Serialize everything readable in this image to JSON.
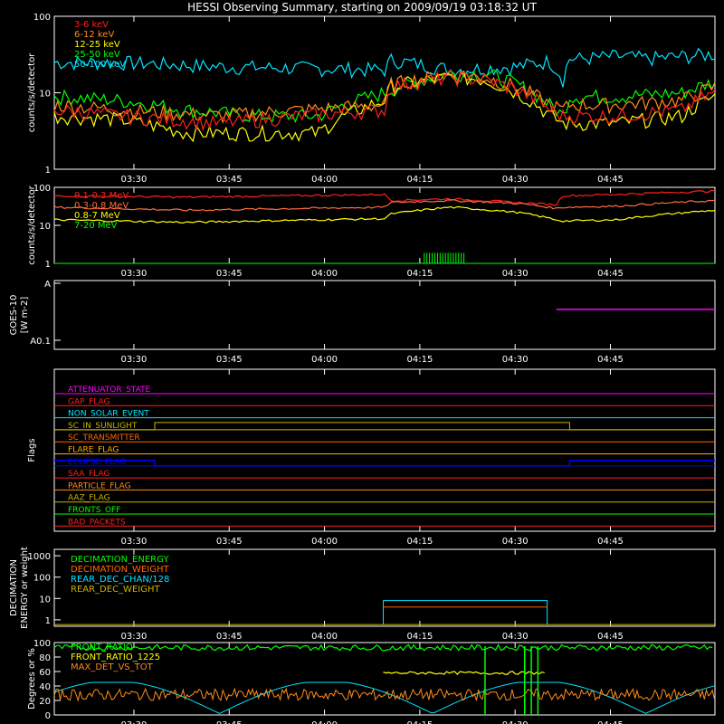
{
  "title": "HESSI Observing Summary, starting on 2009/09/19 03:18:32 UT",
  "time_ticks": [
    "03:30",
    "03:45",
    "04:00",
    "04:15",
    "04:30",
    "04:45"
  ],
  "colors": {
    "bg": "#000000",
    "axis": "#ffffff",
    "red": "#ff2020",
    "orange": "#ff8c1a",
    "yellow": "#ffff00",
    "green": "#00ff00",
    "cyan": "#00e5ff",
    "magenta": "#ff00ff",
    "blue": "#0000ff",
    "salmon": "#ff6a40",
    "olive": "#c8b400",
    "peach": "#ffb000",
    "darkorange": "#ff6600"
  },
  "chart_data": [
    {
      "id": "lowE",
      "type": "line",
      "ylabel": "counts/s/detector",
      "ylog": true,
      "ylim": [
        1,
        100
      ],
      "yticks": [
        "1",
        "10",
        "100"
      ],
      "legend": [
        {
          "name": "3-6 keV",
          "color": "red"
        },
        {
          "name": "6-12 keV",
          "color": "orange"
        },
        {
          "name": "12-25 keV",
          "color": "yellow"
        },
        {
          "name": "25-50 keV",
          "color": "green"
        },
        {
          "name": "50-100 keV",
          "color": "cyan"
        }
      ],
      "series": [
        {
          "name": "50-100 keV",
          "color": "cyan",
          "t": [
            0,
            10,
            25,
            50,
            51,
            60,
            70,
            75,
            77,
            78,
            80,
            85,
            90,
            95,
            100
          ],
          "v": [
            25,
            25,
            22,
            20,
            27,
            20,
            22,
            26,
            15,
            28,
            28,
            30,
            28,
            30,
            32
          ]
        },
        {
          "name": "25-50 keV",
          "color": "green",
          "t": [
            0,
            10,
            20,
            30,
            40,
            50,
            51,
            55,
            60,
            65,
            70,
            75,
            77,
            78,
            85,
            95,
            100
          ],
          "v": [
            9,
            8,
            6,
            5,
            5,
            10,
            11,
            14,
            18,
            18,
            13,
            7,
            5,
            9,
            9,
            10,
            14
          ]
        },
        {
          "name": "12-25 keV",
          "color": "yellow",
          "t": [
            0,
            10,
            20,
            30,
            40,
            50,
            51,
            55,
            60,
            65,
            70,
            75,
            77,
            78,
            85,
            95,
            100
          ],
          "v": [
            5,
            4.5,
            3,
            3,
            3,
            8,
            12,
            14,
            16,
            15,
            10,
            5,
            4,
            4,
            4,
            5,
            9
          ]
        },
        {
          "name": "6-12 keV",
          "color": "orange",
          "t": [
            0,
            10,
            25,
            50,
            51,
            55,
            60,
            65,
            70,
            75,
            77,
            78,
            85,
            95,
            100
          ],
          "v": [
            7,
            6,
            5,
            7,
            13,
            15,
            17,
            16,
            12,
            7,
            6,
            7,
            7,
            8,
            12
          ]
        },
        {
          "name": "3-6 keV",
          "color": "red",
          "t": [
            0,
            10,
            25,
            50,
            51,
            55,
            60,
            65,
            70,
            75,
            77,
            78,
            85,
            95,
            100
          ],
          "v": [
            6,
            5,
            4,
            6,
            12,
            14,
            16,
            15,
            11,
            6,
            5,
            5,
            5,
            6,
            10
          ]
        }
      ]
    },
    {
      "id": "highE",
      "type": "line",
      "ylabel": "counts/s/detector",
      "ylog": true,
      "ylim": [
        1,
        100
      ],
      "yticks": [
        "1",
        "10",
        "100"
      ],
      "legend": [
        {
          "name": "0.1-0.3 MeV",
          "color": "red"
        },
        {
          "name": "0.3-0.8 MeV",
          "color": "salmon"
        },
        {
          "name": "0.8-7 MeV",
          "color": "yellow"
        },
        {
          "name": "7-20 MeV",
          "color": "green"
        }
      ],
      "series": [
        {
          "name": "0.1-0.3 MeV",
          "color": "red",
          "t": [
            0,
            20,
            50,
            51,
            60,
            70,
            76,
            77,
            85,
            100
          ],
          "v": [
            60,
            55,
            65,
            45,
            50,
            40,
            35,
            60,
            65,
            80
          ]
        },
        {
          "name": "0.3-0.8 MeV",
          "color": "salmon",
          "t": [
            0,
            20,
            50,
            51,
            60,
            70,
            76,
            77,
            85,
            100
          ],
          "v": [
            30,
            25,
            30,
            40,
            45,
            38,
            28,
            30,
            32,
            45
          ]
        },
        {
          "name": "0.8-7 MeV",
          "color": "yellow",
          "t": [
            0,
            20,
            50,
            51,
            60,
            70,
            76,
            77,
            85,
            100
          ],
          "v": [
            14,
            12,
            15,
            20,
            30,
            22,
            14,
            13,
            14,
            25
          ]
        },
        {
          "name": "7-20 MeV",
          "color": "green",
          "t": [
            0,
            100
          ],
          "v": [
            1,
            1
          ]
        }
      ]
    },
    {
      "id": "goes",
      "type": "line",
      "ylabel": "GOES-10",
      "ylabel2": "[W m-2]",
      "ylim": [
        0,
        1
      ],
      "yticks": [
        "A0.1",
        "A"
      ],
      "series": [
        {
          "name": "GOES-10",
          "color": "magenta",
          "t": [
            76,
            100
          ],
          "v": [
            0.58,
            0.58
          ]
        }
      ]
    },
    {
      "id": "flags",
      "type": "line",
      "ylabel": "Flags",
      "flags": [
        {
          "name": "ATTENUATOR_STATE",
          "color": "magenta"
        },
        {
          "name": "GAP_FLAG",
          "color": "red"
        },
        {
          "name": "NON_SOLAR_EVENT",
          "color": "cyan"
        },
        {
          "name": "SC_IN_SUNLIGHT",
          "color": "olive"
        },
        {
          "name": "SC_TRANSMITTER",
          "color": "darkorange"
        },
        {
          "name": "FLARE_FLAG",
          "color": "peach"
        },
        {
          "name": "ECLIPSE_FLAG",
          "color": "blue"
        },
        {
          "name": "SAA_FLAG",
          "color": "red"
        },
        {
          "name": "PARTICLE_FLAG",
          "color": "orange"
        },
        {
          "name": "AAZ_FLAG",
          "color": "olive"
        },
        {
          "name": "FRONTS_OFF",
          "color": "green"
        },
        {
          "name": "BAD_PACKETS",
          "color": "red"
        }
      ]
    },
    {
      "id": "decim",
      "type": "line",
      "ylabel": "DECIMATION",
      "ylabel2": "ENERGY or weight",
      "ylog": true,
      "ylim": [
        0.5,
        2000
      ],
      "yticks": [
        "1",
        "10",
        "100",
        "1000"
      ],
      "legend": [
        {
          "name": "DECIMATION_ENERGY",
          "color": "green"
        },
        {
          "name": "DECIMATION_WEIGHT",
          "color": "darkorange"
        },
        {
          "name": "REAR_DEC_CHAN/128",
          "color": "cyan"
        },
        {
          "name": "REAR_DEC_WEIGHT",
          "color": "olive"
        }
      ]
    },
    {
      "id": "ratio",
      "type": "line",
      "ylabel": "Degrees or %",
      "ylim": [
        0,
        100
      ],
      "yticks": [
        "0",
        "20",
        "40",
        "60",
        "80",
        "100"
      ],
      "legend": [
        {
          "name": "FRONT_RATIO",
          "color": "green"
        },
        {
          "name": "FRONT_RATIO_1225",
          "color": "yellow"
        },
        {
          "name": "MAX_DET_VS_TOT",
          "color": "orange"
        }
      ]
    }
  ]
}
